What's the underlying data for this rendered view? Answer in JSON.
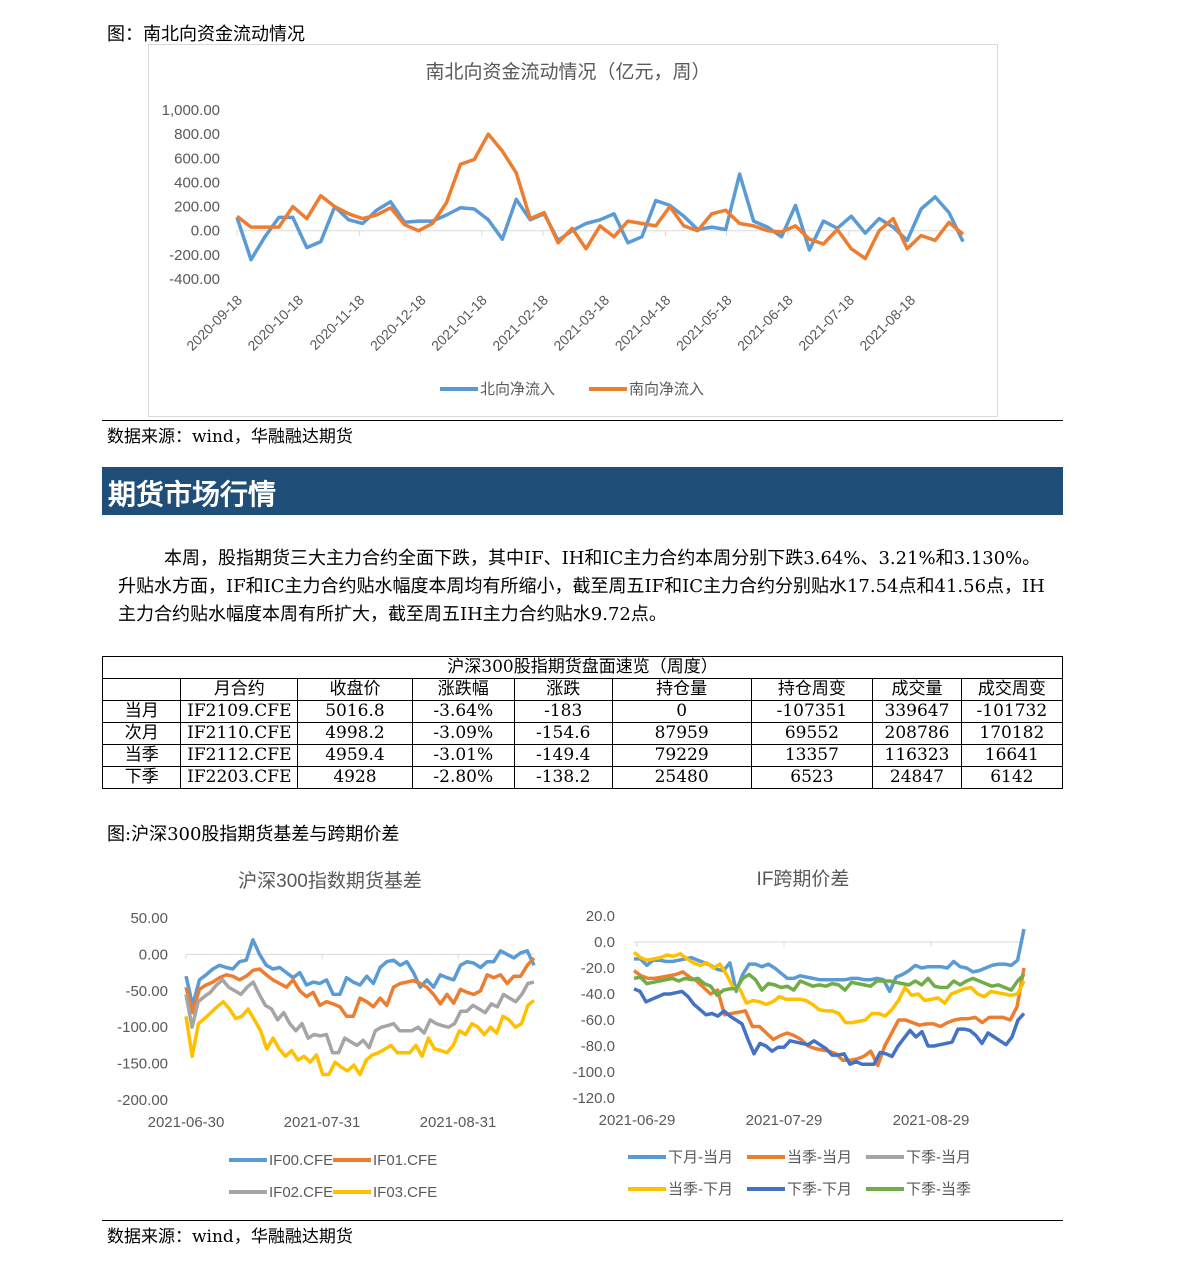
{
  "fig1": {
    "caption": "图：南北向资金流动情况",
    "source": "数据来源：wind，华融融达期货"
  },
  "section_title": "期货市场行情",
  "paragraph": "本周，股指期货三大主力合约全面下跌，其中IF、IH和IC主力合约本周分别下跌3.64%、3.21%和3.130%。升贴水方面，IF和IC主力合约贴水幅度本周均有所缩小，截至周五IF和IC主力合约分别贴水17.54点和41.56点，IH主力合约贴水幅度本周有所扩大，截至周五IH主力合约贴水9.72点。",
  "table": {
    "title": "沪深300股指期货盘面速览（周度）",
    "headers": [
      "",
      "月合约",
      "收盘价",
      "涨跌幅",
      "涨跌",
      "持仓量",
      "持仓周变",
      "成交量",
      "成交周变"
    ],
    "rows": [
      [
        "当月",
        "IF2109.CFE",
        "5016.8",
        "-3.64%",
        "-183",
        "0",
        "-107351",
        "339647",
        "-101732"
      ],
      [
        "次月",
        "IF2110.CFE",
        "4998.2",
        "-3.09%",
        "-154.6",
        "87959",
        "69552",
        "208786",
        "170182"
      ],
      [
        "当季",
        "IF2112.CFE",
        "4959.4",
        "-3.01%",
        "-149.4",
        "79229",
        "13357",
        "116323",
        "16641"
      ],
      [
        "下季",
        "IF2203.CFE",
        "4928",
        "-2.80%",
        "-138.2",
        "25480",
        "6523",
        "24847",
        "6142"
      ]
    ]
  },
  "fig2": {
    "caption": "图:沪深300股指期货基差与跨期价差",
    "source": "数据来源：wind，华融融达期货"
  },
  "chart_data": [
    {
      "type": "line",
      "title": "南北向资金流动情况（亿元，周）",
      "ylim": [
        -400,
        1000
      ],
      "yticks": [
        "1,000.00",
        "800.00",
        "600.00",
        "400.00",
        "200.00",
        "0.00",
        "-200.00",
        "-400.00"
      ],
      "ytick_values": [
        1000,
        800,
        600,
        400,
        200,
        0,
        -200,
        -400
      ],
      "xticks": [
        "2020-09-18",
        "2020-10-18",
        "2020-11-18",
        "2020-12-18",
        "2021-01-18",
        "2021-02-18",
        "2021-03-18",
        "2021-04-18",
        "2021-05-18",
        "2021-06-18",
        "2021-07-18",
        "2021-08-18"
      ],
      "legend": "bottom",
      "series": [
        {
          "name": "北向净流入",
          "color": "#5B9BD5",
          "values": [
            110,
            -240,
            -50,
            110,
            110,
            -140,
            -90,
            200,
            90,
            60,
            170,
            240,
            70,
            80,
            80,
            130,
            190,
            180,
            90,
            -70,
            260,
            90,
            140,
            -80,
            0,
            60,
            90,
            140,
            -100,
            -50,
            250,
            210,
            120,
            10,
            30,
            10,
            470,
            80,
            30,
            -50,
            210,
            -160,
            80,
            20,
            120,
            -20,
            100,
            30,
            -80,
            180,
            280,
            150,
            -90
          ]
        },
        {
          "name": "南向净流入",
          "color": "#ED7D31",
          "values": [
            120,
            30,
            30,
            30,
            200,
            100,
            290,
            200,
            140,
            100,
            130,
            190,
            50,
            0,
            60,
            230,
            550,
            590,
            800,
            660,
            480,
            100,
            150,
            -100,
            20,
            -150,
            40,
            -50,
            80,
            60,
            40,
            200,
            40,
            0,
            140,
            170,
            60,
            40,
            0,
            -10,
            40,
            -70,
            -110,
            10,
            -150,
            -230,
            0,
            100,
            -150,
            -40,
            -80,
            70,
            -30
          ]
        }
      ]
    },
    {
      "type": "line",
      "title": "沪深300指数期货基差",
      "ylim": [
        -200,
        50
      ],
      "yticks": [
        "50.00",
        "0.00",
        "-50.00",
        "-100.00",
        "-150.00",
        "-200.00"
      ],
      "ytick_values": [
        50,
        0,
        -50,
        -100,
        -150,
        -200
      ],
      "xticks": [
        "2021-06-30",
        "2021-07-31",
        "2021-08-31"
      ],
      "legend": "bottom",
      "series": [
        {
          "name": "IF00.CFE",
          "color": "#5B9BD5",
          "values": [
            -30,
            -70,
            -35,
            -28,
            -20,
            -15,
            -18,
            -20,
            -10,
            -8,
            20,
            0,
            -15,
            -20,
            -18,
            -25,
            -32,
            -25,
            -42,
            -38,
            -40,
            -35,
            -55,
            -55,
            -32,
            -38,
            -42,
            -30,
            -40,
            -18,
            -10,
            -8,
            -15,
            -10,
            -25,
            -45,
            -35,
            -45,
            -28,
            -32,
            -35,
            -15,
            -10,
            -12,
            -18,
            -10,
            -10,
            5,
            0,
            -5,
            2,
            5,
            -15
          ]
        },
        {
          "name": "IF01.CFE",
          "color": "#ED7D31",
          "values": [
            -45,
            -80,
            -48,
            -42,
            -38,
            -32,
            -28,
            -30,
            -35,
            -30,
            -22,
            -20,
            -28,
            -35,
            -40,
            -45,
            -35,
            -50,
            -58,
            -52,
            -70,
            -65,
            -68,
            -72,
            -85,
            -85,
            -60,
            -65,
            -72,
            -60,
            -70,
            -45,
            -40,
            -38,
            -36,
            -40,
            -45,
            -55,
            -68,
            -55,
            -67,
            -48,
            -52,
            -55,
            -50,
            -28,
            -32,
            -28,
            -40,
            -30,
            -30,
            -15,
            -5
          ]
        },
        {
          "name": "IF02.CFE",
          "color": "#A5A5A5",
          "values": [
            -55,
            -100,
            -65,
            -58,
            -52,
            -42,
            -35,
            -45,
            -50,
            -55,
            -45,
            -38,
            -55,
            -70,
            -75,
            -90,
            -80,
            -95,
            -105,
            -95,
            -115,
            -110,
            -112,
            -110,
            -135,
            -135,
            -115,
            -120,
            -125,
            -118,
            -128,
            -105,
            -100,
            -98,
            -95,
            -105,
            -105,
            -105,
            -100,
            -108,
            -90,
            -95,
            -98,
            -100,
            -95,
            -78,
            -78,
            -70,
            -75,
            -80,
            -68,
            -72,
            -55,
            -60,
            -65,
            -55,
            -40,
            -38
          ]
        },
        {
          "name": "IF03.CFE",
          "color": "#FFC000",
          "values": [
            -85,
            -140,
            -95,
            -88,
            -80,
            -72,
            -65,
            -75,
            -88,
            -85,
            -75,
            -90,
            -105,
            -130,
            -115,
            -130,
            -140,
            -132,
            -145,
            -140,
            -148,
            -138,
            -165,
            -165,
            -148,
            -155,
            -160,
            -152,
            -165,
            -145,
            -138,
            -135,
            -130,
            -125,
            -135,
            -135,
            -135,
            -125,
            -140,
            -115,
            -130,
            -132,
            -135,
            -125,
            -105,
            -110,
            -95,
            -100,
            -110,
            -100,
            -108,
            -85,
            -90,
            -100,
            -95,
            -70,
            -63
          ]
        }
      ]
    },
    {
      "type": "line",
      "title": "IF跨期价差",
      "ylim": [
        -120,
        20
      ],
      "yticks": [
        "20.0",
        "0.0",
        "-20.0",
        "-40.0",
        "-60.0",
        "-80.0",
        "-100.0",
        "-120.0"
      ],
      "ytick_values": [
        20,
        0,
        -20,
        -40,
        -60,
        -80,
        -100,
        -120
      ],
      "xticks": [
        "2021-06-29",
        "2021-07-29",
        "2021-08-29"
      ],
      "legend": "bottom",
      "series": [
        {
          "name": "下月-当月",
          "color": "#5B9BD5",
          "values": [
            -13,
            -13,
            -18,
            -14,
            -14,
            -15,
            -15,
            -14,
            -13,
            -12,
            -14,
            -16,
            -18,
            -21,
            -22,
            -16,
            -38,
            -25,
            -17,
            -17,
            -19,
            -17,
            -20,
            -24,
            -28,
            -28,
            -26,
            -27,
            -28,
            -29,
            -29,
            -29,
            -29,
            -29,
            -28,
            -28,
            -29,
            -29,
            -28,
            -29,
            -38,
            -27,
            -25,
            -22,
            -18,
            -20,
            -19,
            -19,
            -19,
            -20,
            -15,
            -19,
            -20,
            -23,
            -22,
            -20,
            -18,
            -17,
            -17,
            -18,
            -14,
            10
          ]
        },
        {
          "name": "当季-当月",
          "color": "#ED7D31",
          "values": [
            -22,
            -26,
            -28,
            -28,
            -27,
            -26,
            -25,
            -23,
            -27,
            -30,
            -35,
            -40,
            -37,
            -56,
            -55,
            -54,
            -53,
            -65,
            -65,
            -70,
            -75,
            -72,
            -70,
            -72,
            -75,
            -80,
            -82,
            -83,
            -84,
            -86,
            -91,
            -91,
            -90,
            -88,
            -84,
            -95,
            -80,
            -70,
            -60,
            -60,
            -62,
            -64,
            -63,
            -63,
            -65,
            -62,
            -60,
            -59,
            -59,
            -58,
            -62,
            -58,
            -58,
            -58,
            -60,
            -50,
            -20
          ]
        },
        {
          "name": "下季-当月",
          "color": "#A5A5A5",
          "values": []
        },
        {
          "name": "当季-下月",
          "color": "#FFC000",
          "values": [
            -8,
            -12,
            -14,
            -13,
            -12,
            -10,
            -11,
            -9,
            -13,
            -16,
            -18,
            -16,
            -20,
            -17,
            -25,
            -35,
            -36,
            -47,
            -45,
            -46,
            -48,
            -46,
            -42,
            -44,
            -44,
            -44,
            -45,
            -48,
            -52,
            -53,
            -53,
            -55,
            -62,
            -62,
            -61,
            -60,
            -55,
            -55,
            -57,
            -52,
            -45,
            -35,
            -41,
            -40,
            -45,
            -44,
            -43,
            -47,
            -40,
            -38,
            -36,
            -35,
            -40,
            -42,
            -38,
            -39,
            -40,
            -41,
            -40,
            -30
          ]
        },
        {
          "name": "下季-下月",
          "color": "#4472C4",
          "values": [
            -36,
            -38,
            -46,
            -44,
            -42,
            -40,
            -40,
            -39,
            -38,
            -42,
            -48,
            -52,
            -56,
            -55,
            -57,
            -53,
            -57,
            -60,
            -63,
            -75,
            -86,
            -78,
            -80,
            -84,
            -81,
            -81,
            -76,
            -77,
            -78,
            -79,
            -76,
            -79,
            -82,
            -87,
            -87,
            -86,
            -94,
            -92,
            -94,
            -94,
            -94,
            -85,
            -86,
            -88,
            -80,
            -74,
            -68,
            -73,
            -69,
            -80,
            -80,
            -79,
            -78,
            -77,
            -67,
            -67,
            -68,
            -72,
            -78,
            -70,
            -73,
            -76,
            -79,
            -73,
            -60,
            -55
          ]
        },
        {
          "name": "下季-当季",
          "color": "#70AD47",
          "values": [
            -28,
            -27,
            -32,
            -31,
            -30,
            -29,
            -28,
            -30,
            -28,
            -29,
            -28,
            -32,
            -34,
            -41,
            -37,
            -36,
            -36,
            -28,
            -25,
            -29,
            -37,
            -32,
            -33,
            -35,
            -34,
            -37,
            -30,
            -32,
            -34,
            -33,
            -34,
            -32,
            -33,
            -37,
            -31,
            -32,
            -33,
            -34,
            -30,
            -30,
            -30,
            -31,
            -32,
            -33,
            -30,
            -33,
            -28,
            -34,
            -35,
            -35,
            -30,
            -33,
            -30,
            -28,
            -30,
            -32,
            -34,
            -33,
            -35,
            -37,
            -30,
            -25
          ]
        }
      ]
    }
  ]
}
